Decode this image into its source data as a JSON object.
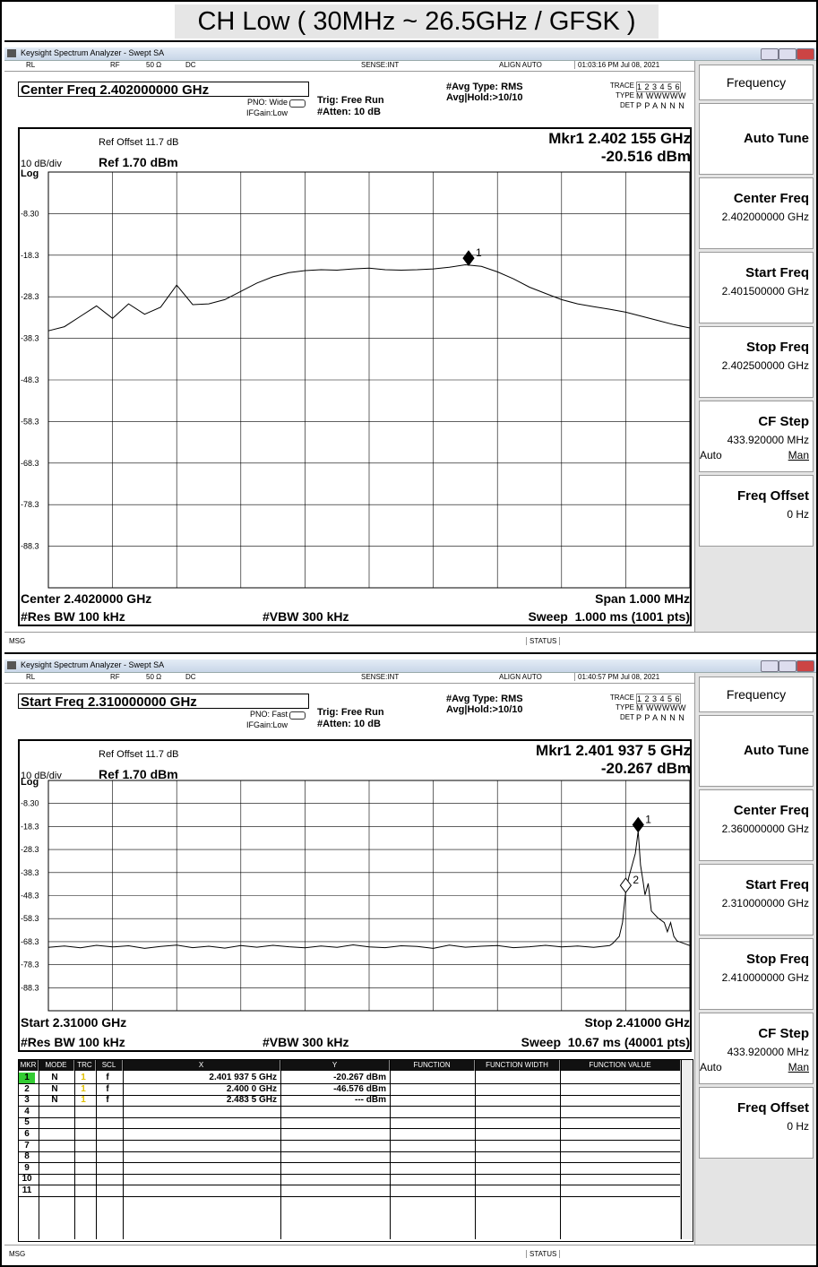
{
  "title": "CH Low ( 30MHz ~ 26.5GHz / GFSK )",
  "panels": [
    {
      "window_title": "Keysight Spectrum Analyzer - Swept SA",
      "status": {
        "rl": "RL",
        "rf": "RF",
        "impedance": "50 Ω",
        "coupling": "DC",
        "sense": "SENSE:INT",
        "align": "ALIGN AUTO",
        "time": "01:03:16 PM Jul 08, 2021"
      },
      "header": {
        "freq": "Center Freq 2.402000000 GHz",
        "pno": "PNO: Wide",
        "ifgain": "IFGain:Low",
        "trig": "Trig: Free Run",
        "atten": "#Atten: 10 dB",
        "avg_type": "#Avg Type: RMS",
        "avg_hold": "Avg|Hold:>10/10",
        "trace_label": "TRACE",
        "trace": "1 2 3 4 5 6",
        "type_label": "TYPE",
        "type": "M WWWWW",
        "det_label": "DET",
        "det": "P P A N N N"
      },
      "chart": {
        "type": "line",
        "ref_offset": "Ref Offset 11.7 dB",
        "scale": "10 dB/div",
        "ref_level": "Ref 1.70 dBm",
        "log": "Log",
        "marker_readout": "Mkr1 2.402 155 GHz",
        "marker_value": "-20.516 dBm",
        "xlim": [
          2.4015,
          2.4025
        ],
        "ylim": [
          -98.3,
          1.7
        ],
        "yticks": [
          {
            "value": -8.3,
            "label": "-8.30"
          },
          -18.3,
          -28.3,
          -38.3,
          -48.3,
          -58.3,
          -68.3,
          -78.3,
          -88.3
        ],
        "grid": true,
        "color": "#000000",
        "trace": {
          "x": [
            2.4015,
            2.401525,
            2.40155,
            2.401575,
            2.4016,
            2.401625,
            2.40165,
            2.401675,
            2.4017,
            2.401725,
            2.40175,
            2.401775,
            2.4018,
            2.401825,
            2.40185,
            2.401875,
            2.4019,
            2.401925,
            2.40195,
            2.401975,
            2.402,
            2.402025,
            2.40205,
            2.402075,
            2.4021,
            2.402125,
            2.40215,
            2.402175,
            2.4022,
            2.402225,
            2.40225,
            2.402275,
            2.4023,
            2.402325,
            2.40235,
            2.402375,
            2.4024,
            2.402425,
            2.40245,
            2.402475,
            2.4025
          ],
          "values": [
            -36.5,
            -35.5,
            -33.0,
            -30.5,
            -33.5,
            -30.0,
            -32.5,
            -30.8,
            -25.5,
            -30.2,
            -30.0,
            -29.0,
            -27.0,
            -25.0,
            -23.5,
            -22.5,
            -22.0,
            -21.8,
            -21.9,
            -21.6,
            -21.4,
            -21.8,
            -21.9,
            -21.8,
            -21.6,
            -21.2,
            -20.6,
            -21.0,
            -22.3,
            -24.0,
            -26.0,
            -27.5,
            -29.0,
            -30.0,
            -30.7,
            -31.3,
            -32.0,
            -33.0,
            -34.0,
            -35.0,
            -35.8
          ]
        },
        "markers": [
          {
            "label": "1",
            "x": 2.402155,
            "value": -20.516
          }
        ],
        "footer": {
          "start": "Center 2.4020000 GHz",
          "stop": "Span 1.000 MHz",
          "rbw": "#Res BW 100 kHz",
          "vbw": "#VBW 300 kHz",
          "sweep": "Sweep  1.000 ms (1001 pts)"
        }
      },
      "msg": "MSG",
      "status_bar": "STATUS",
      "softkeys": {
        "menu": "Frequency",
        "items": [
          {
            "label": "Auto Tune"
          },
          {
            "label": "Center Freq",
            "value": "2.402000000 GHz"
          },
          {
            "label": "Start Freq",
            "value": "2.401500000 GHz"
          },
          {
            "label": "Stop Freq",
            "value": "2.402500000 GHz"
          },
          {
            "label": "CF Step",
            "value": "433.920000 MHz",
            "options": [
              "Auto",
              "Man"
            ]
          },
          {
            "label": "Freq Offset",
            "value": "0 Hz"
          }
        ]
      }
    },
    {
      "window_title": "Keysight Spectrum Analyzer - Swept SA",
      "status": {
        "rl": "RL",
        "rf": "RF",
        "impedance": "50 Ω",
        "coupling": "DC",
        "sense": "SENSE:INT",
        "align": "ALIGN AUTO",
        "time": "01:40:57 PM Jul 08, 2021"
      },
      "header": {
        "freq": "Start Freq 2.310000000 GHz",
        "pno": "PNO: Fast",
        "ifgain": "IFGain:Low",
        "trig": "Trig: Free Run",
        "atten": "#Atten: 10 dB",
        "avg_type": "#Avg Type: RMS",
        "avg_hold": "Avg|Hold:>10/10",
        "trace_label": "TRACE",
        "trace": "1 2 3 4 5 6",
        "type_label": "TYPE",
        "type": "M WWWWW",
        "det_label": "DET",
        "det": "P P A N N N"
      },
      "chart": {
        "type": "line",
        "ref_offset": "Ref Offset 11.7 dB",
        "scale": "10 dB/div",
        "ref_level": "Ref 1.70 dBm",
        "log": "Log",
        "marker_readout": "Mkr1 2.401 937 5 GHz",
        "marker_value": "-20.267 dBm",
        "xlim": [
          2.31,
          2.41
        ],
        "ylim": [
          -98.3,
          1.7
        ],
        "yticks": [
          {
            "value": -8.3,
            "label": "-8.30"
          },
          -18.3,
          -28.3,
          -38.3,
          -48.3,
          -58.3,
          -68.3,
          -78.3,
          -88.3
        ],
        "grid": true,
        "color": "#000000",
        "trace": {
          "x": [
            2.31,
            2.3125,
            2.315,
            2.3175,
            2.32,
            2.3225,
            2.325,
            2.3275,
            2.33,
            2.3325,
            2.335,
            2.3375,
            2.34,
            2.3425,
            2.345,
            2.3475,
            2.35,
            2.3525,
            2.355,
            2.3575,
            2.36,
            2.3625,
            2.365,
            2.3675,
            2.37,
            2.3725,
            2.375,
            2.3775,
            2.38,
            2.3825,
            2.385,
            2.3875,
            2.39,
            2.3925,
            2.395,
            2.3975,
            2.398,
            2.3985,
            2.399,
            2.3995,
            2.4,
            2.4005,
            2.401,
            2.4015,
            2.4019375,
            2.4023,
            2.4027,
            2.403,
            2.4035,
            2.404,
            2.405,
            2.406,
            2.4065,
            2.407,
            2.4075,
            2.408,
            2.409,
            2.41
          ],
          "values": [
            -70.8,
            -70.2,
            -71.0,
            -69.9,
            -70.6,
            -70.1,
            -71.2,
            -70.4,
            -69.8,
            -70.9,
            -70.3,
            -71.1,
            -70.0,
            -70.7,
            -69.9,
            -70.5,
            -71.0,
            -70.2,
            -70.8,
            -69.7,
            -70.6,
            -70.9,
            -70.1,
            -70.4,
            -71.2,
            -69.8,
            -70.7,
            -70.3,
            -70.0,
            -70.9,
            -70.5,
            -69.9,
            -70.6,
            -70.2,
            -70.8,
            -70.0,
            -69.0,
            -67.5,
            -66.0,
            -60.0,
            -46.6,
            -40.0,
            -35.0,
            -30.0,
            -20.3,
            -35.0,
            -42.0,
            -48.0,
            -43.0,
            -55.0,
            -58.0,
            -60.0,
            -64.0,
            -60.0,
            -66.0,
            -68.0,
            -69.0,
            -70.0
          ]
        },
        "markers": [
          {
            "label": "1",
            "x": 2.4019375,
            "value": -20.267
          },
          {
            "label": "2",
            "x": 2.4,
            "value": -46.576
          }
        ],
        "footer": {
          "start": "Start 2.31000 GHz",
          "stop": "Stop 2.41000 GHz",
          "rbw": "#Res BW 100 kHz",
          "vbw": "#VBW 300 kHz",
          "sweep": "Sweep  10.67 ms (40001 pts)"
        }
      },
      "table": {
        "columns": [
          "MKR",
          "MODE",
          "TRC",
          "SCL",
          "X",
          "Y",
          "FUNCTION",
          "FUNCTION WIDTH",
          "FUNCTION VALUE"
        ],
        "rows": [
          [
            "1",
            "N",
            "1",
            "f",
            "2.401 937 5 GHz",
            "-20.267 dBm"
          ],
          [
            "2",
            "N",
            "1",
            "f",
            "2.400 0 GHz",
            "-46.576 dBm"
          ],
          [
            "3",
            "N",
            "1",
            "f",
            "2.483 5 GHz",
            "--- dBm"
          ],
          [
            "4"
          ],
          [
            "5"
          ],
          [
            "6"
          ],
          [
            "7"
          ],
          [
            "8"
          ],
          [
            "9"
          ],
          [
            "10"
          ],
          [
            "11"
          ]
        ]
      },
      "msg": "MSG",
      "status_bar": "STATUS",
      "softkeys": {
        "menu": "Frequency",
        "items": [
          {
            "label": "Auto Tune"
          },
          {
            "label": "Center Freq",
            "value": "2.360000000 GHz"
          },
          {
            "label": "Start Freq",
            "value": "2.310000000 GHz"
          },
          {
            "label": "Stop Freq",
            "value": "2.410000000 GHz"
          },
          {
            "label": "CF Step",
            "value": "433.920000 MHz",
            "options": [
              "Auto",
              "Man"
            ]
          },
          {
            "label": "Freq Offset",
            "value": "0 Hz"
          }
        ]
      }
    }
  ]
}
